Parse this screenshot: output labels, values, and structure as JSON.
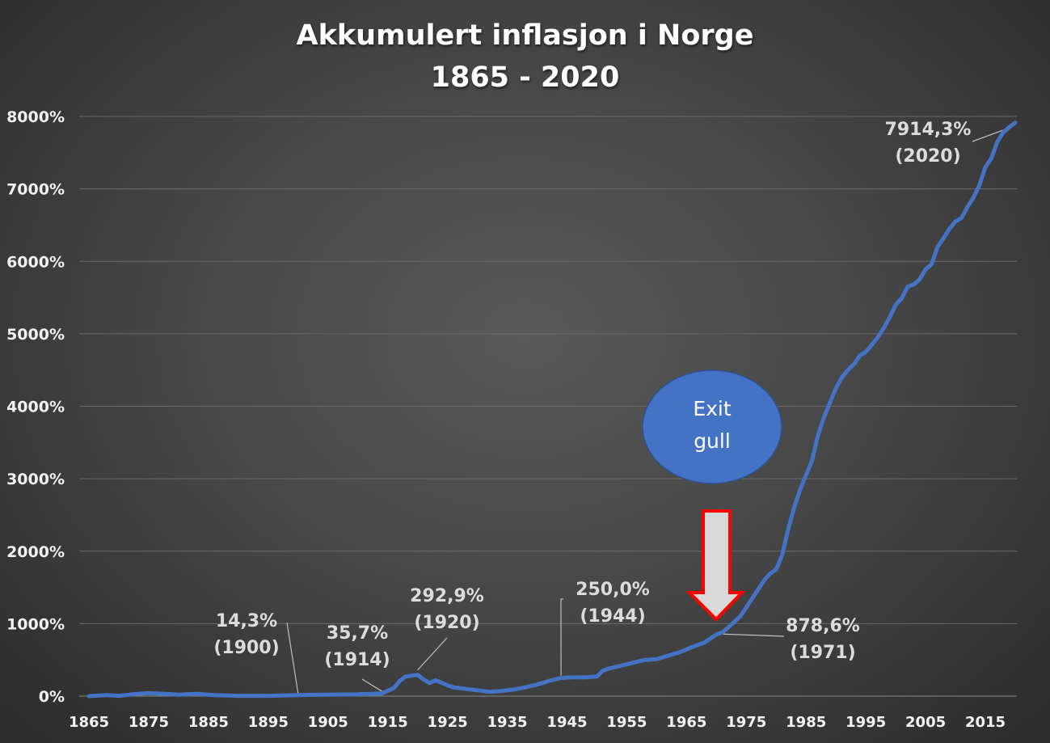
{
  "chart_data": {
    "type": "line",
    "title": "Akkumulert inflasjon i Norge",
    "subtitle": "1865 - 2020",
    "xlabel": "",
    "ylabel": "",
    "xlim": [
      1865,
      2020
    ],
    "ylim": [
      0,
      8000
    ],
    "y_ticks": [
      "0%",
      "1000%",
      "2000%",
      "3000%",
      "4000%",
      "5000%",
      "6000%",
      "7000%",
      "8000%"
    ],
    "x_ticks": [
      "1865",
      "1875",
      "1885",
      "1895",
      "1905",
      "1915",
      "1925",
      "1935",
      "1945",
      "1955",
      "1965",
      "1975",
      "1985",
      "1995",
      "2005",
      "2015"
    ],
    "grid": "horizontal",
    "legend": "none",
    "line_color": "#4472c4",
    "series": [
      {
        "x": [
          1865,
          1868,
          1870,
          1873,
          1875,
          1878,
          1880,
          1883,
          1886,
          1890,
          1895,
          1900,
          1905,
          1910,
          1914,
          1916,
          1917,
          1918,
          1920,
          1921,
          1922,
          1923,
          1925,
          1926,
          1928,
          1930,
          1932,
          1934,
          1936,
          1938,
          1940,
          1942,
          1944,
          1946,
          1948,
          1950,
          1951,
          1952,
          1954,
          1956,
          1958,
          1960,
          1962,
          1964,
          1966,
          1968,
          1970,
          1971,
          1972,
          1974,
          1976,
          1978,
          1979,
          1980,
          1981,
          1982,
          1983,
          1984,
          1985,
          1986,
          1987,
          1988,
          1989,
          1990,
          1991,
          1992,
          1993,
          1994,
          1995,
          1996,
          1997,
          1998,
          1999,
          2000,
          2001,
          2002,
          2003,
          2004,
          2005,
          2006,
          2007,
          2008,
          2009,
          2010,
          2011,
          2012,
          2013,
          2014,
          2015,
          2016,
          2017,
          2018,
          2019,
          2020
        ],
        "y": [
          0,
          15,
          5,
          30,
          40,
          30,
          20,
          30,
          15,
          5,
          5,
          14.3,
          20,
          25,
          35.7,
          110,
          210,
          270,
          292.9,
          230,
          180,
          220,
          150,
          120,
          100,
          80,
          60,
          70,
          90,
          120,
          160,
          210,
          250,
          260,
          260,
          270,
          350,
          380,
          420,
          460,
          500,
          510,
          560,
          610,
          680,
          740,
          850,
          878.6,
          950,
          1100,
          1350,
          1600,
          1690,
          1750,
          1950,
          2300,
          2600,
          2850,
          3050,
          3250,
          3600,
          3850,
          4050,
          4250,
          4400,
          4500,
          4580,
          4700,
          4750,
          4850,
          4950,
          5080,
          5230,
          5400,
          5490,
          5650,
          5680,
          5750,
          5890,
          5960,
          6200,
          6320,
          6450,
          6550,
          6600,
          6750,
          6880,
          7050,
          7300,
          7420,
          7650,
          7780,
          7850,
          7914.3
        ]
      }
    ],
    "annotations": [
      {
        "value": "14,3%",
        "year": "(1900)",
        "x": 1900,
        "y": 14.3
      },
      {
        "value": "35,7%",
        "year": "(1914)",
        "x": 1914,
        "y": 35.7
      },
      {
        "value": "292,9%",
        "year": "(1920)",
        "x": 1920,
        "y": 292.9
      },
      {
        "value": "250,0%",
        "year": "(1944)",
        "x": 1944,
        "y": 250
      },
      {
        "value": "878,6%",
        "year": "(1971)",
        "x": 1971,
        "y": 878.6
      },
      {
        "value": "7914,3%",
        "year": "(2020)",
        "x": 2020,
        "y": 7914.3
      }
    ],
    "callout": {
      "line1": "Exit",
      "line2": "gull",
      "fill_color": "#4472c4",
      "arrow_fill": "#d9d9d9",
      "arrow_stroke": "#ff0000"
    }
  }
}
